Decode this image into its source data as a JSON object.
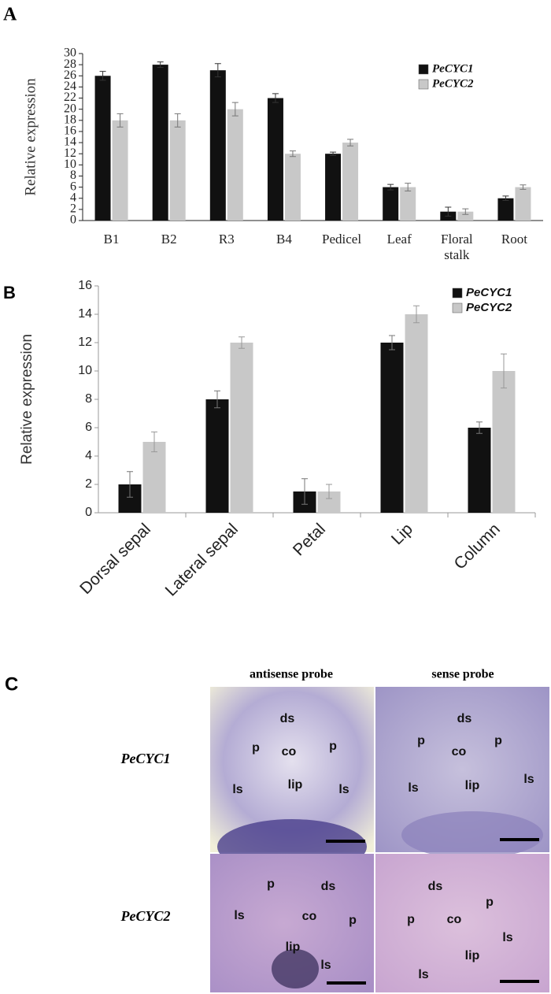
{
  "chart_data": [
    {
      "type": "bar",
      "label": "A",
      "y_label": "Relative expression",
      "categories": [
        "B1",
        "B2",
        "R3",
        "B4",
        "Pedicel",
        "Leaf",
        "Floral stalk",
        "Root"
      ],
      "series": [
        {
          "name": "PeCYC1",
          "color": "#111111",
          "values": [
            26,
            28,
            27,
            22,
            12,
            6,
            1.6,
            4
          ],
          "errors": [
            0.8,
            0.5,
            1.2,
            0.8,
            0.3,
            0.5,
            0.8,
            0.4
          ]
        },
        {
          "name": "PeCYC2",
          "color": "#c8c8c8",
          "values": [
            18,
            18,
            20,
            12,
            14,
            6,
            1.6,
            6
          ],
          "errors": [
            1.2,
            1.2,
            1.2,
            0.5,
            0.6,
            0.7,
            0.5,
            0.4
          ]
        }
      ],
      "ylim": [
        0,
        30
      ],
      "yticks": [
        0,
        2,
        4,
        6,
        8,
        10,
        12,
        14,
        16,
        18,
        20,
        22,
        24,
        26,
        28,
        30
      ],
      "legend": "upper right",
      "grid": false
    },
    {
      "type": "bar",
      "label": "B",
      "y_label": "Relative expression",
      "categories": [
        "Dorsal sepal",
        "Lateral sepal",
        "Petal",
        "Lip",
        "Column"
      ],
      "series": [
        {
          "name": "PeCYC1",
          "color": "#111111",
          "values": [
            2,
            8,
            1.5,
            12,
            6
          ],
          "errors": [
            0.9,
            0.6,
            0.9,
            0.5,
            0.4
          ]
        },
        {
          "name": "PeCYC2",
          "color": "#c8c8c8",
          "values": [
            5,
            12,
            1.5,
            14,
            10
          ],
          "errors": [
            0.7,
            0.4,
            0.5,
            0.6,
            1.2
          ]
        }
      ],
      "ylim": [
        0,
        16
      ],
      "yticks": [
        0,
        2,
        4,
        6,
        8,
        10,
        12,
        14,
        16
      ],
      "legend": "upper right",
      "grid": false
    }
  ],
  "panel_c": {
    "label": "C",
    "columns": [
      "antisense probe",
      "sense probe"
    ],
    "rows": [
      "PeCYC1",
      "PeCYC2"
    ],
    "images": [
      {
        "labels": [
          "ds",
          "p",
          "co",
          "p",
          "ls",
          "lip",
          "ls"
        ]
      },
      {
        "labels": [
          "ds",
          "p",
          "co",
          "p",
          "ls",
          "lip",
          "ls"
        ]
      },
      {
        "labels": [
          "p",
          "ds",
          "ls",
          "co",
          "p",
          "lip",
          "ls"
        ]
      },
      {
        "labels": [
          "ds",
          "p",
          "p",
          "co",
          "ls",
          "lip",
          "ls"
        ]
      }
    ]
  }
}
